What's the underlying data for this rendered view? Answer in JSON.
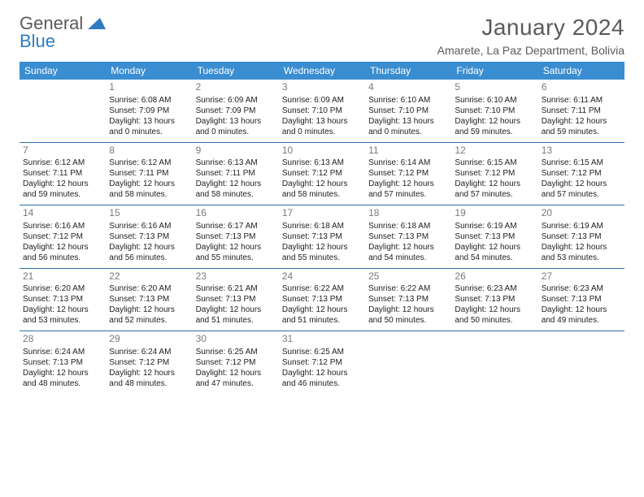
{
  "brand": {
    "first": "General",
    "second": "Blue",
    "first_color": "#5a5a5a",
    "second_color": "#2f7bc1"
  },
  "title": {
    "month": "January 2024",
    "location": "Amarete, La Paz Department, Bolivia",
    "color": "#5a5a5a",
    "month_fontsize": 28,
    "location_fontsize": 14
  },
  "header_bg": "#3a8dd0",
  "header_fg": "#ffffff",
  "rule_color": "#2f6fa8",
  "body_fontsize": 10,
  "daynum_color": "#7a7a7a",
  "daynames": [
    "Sunday",
    "Monday",
    "Tuesday",
    "Wednesday",
    "Thursday",
    "Friday",
    "Saturday"
  ],
  "weeks": [
    [
      null,
      {
        "n": "1",
        "sunrise": "Sunrise: 6:08 AM",
        "sunset": "Sunset: 7:09 PM",
        "day1": "Daylight: 13 hours",
        "day2": "and 0 minutes."
      },
      {
        "n": "2",
        "sunrise": "Sunrise: 6:09 AM",
        "sunset": "Sunset: 7:09 PM",
        "day1": "Daylight: 13 hours",
        "day2": "and 0 minutes."
      },
      {
        "n": "3",
        "sunrise": "Sunrise: 6:09 AM",
        "sunset": "Sunset: 7:10 PM",
        "day1": "Daylight: 13 hours",
        "day2": "and 0 minutes."
      },
      {
        "n": "4",
        "sunrise": "Sunrise: 6:10 AM",
        "sunset": "Sunset: 7:10 PM",
        "day1": "Daylight: 13 hours",
        "day2": "and 0 minutes."
      },
      {
        "n": "5",
        "sunrise": "Sunrise: 6:10 AM",
        "sunset": "Sunset: 7:10 PM",
        "day1": "Daylight: 12 hours",
        "day2": "and 59 minutes."
      },
      {
        "n": "6",
        "sunrise": "Sunrise: 6:11 AM",
        "sunset": "Sunset: 7:11 PM",
        "day1": "Daylight: 12 hours",
        "day2": "and 59 minutes."
      }
    ],
    [
      {
        "n": "7",
        "sunrise": "Sunrise: 6:12 AM",
        "sunset": "Sunset: 7:11 PM",
        "day1": "Daylight: 12 hours",
        "day2": "and 59 minutes."
      },
      {
        "n": "8",
        "sunrise": "Sunrise: 6:12 AM",
        "sunset": "Sunset: 7:11 PM",
        "day1": "Daylight: 12 hours",
        "day2": "and 58 minutes."
      },
      {
        "n": "9",
        "sunrise": "Sunrise: 6:13 AM",
        "sunset": "Sunset: 7:11 PM",
        "day1": "Daylight: 12 hours",
        "day2": "and 58 minutes."
      },
      {
        "n": "10",
        "sunrise": "Sunrise: 6:13 AM",
        "sunset": "Sunset: 7:12 PM",
        "day1": "Daylight: 12 hours",
        "day2": "and 58 minutes."
      },
      {
        "n": "11",
        "sunrise": "Sunrise: 6:14 AM",
        "sunset": "Sunset: 7:12 PM",
        "day1": "Daylight: 12 hours",
        "day2": "and 57 minutes."
      },
      {
        "n": "12",
        "sunrise": "Sunrise: 6:15 AM",
        "sunset": "Sunset: 7:12 PM",
        "day1": "Daylight: 12 hours",
        "day2": "and 57 minutes."
      },
      {
        "n": "13",
        "sunrise": "Sunrise: 6:15 AM",
        "sunset": "Sunset: 7:12 PM",
        "day1": "Daylight: 12 hours",
        "day2": "and 57 minutes."
      }
    ],
    [
      {
        "n": "14",
        "sunrise": "Sunrise: 6:16 AM",
        "sunset": "Sunset: 7:12 PM",
        "day1": "Daylight: 12 hours",
        "day2": "and 56 minutes."
      },
      {
        "n": "15",
        "sunrise": "Sunrise: 6:16 AM",
        "sunset": "Sunset: 7:13 PM",
        "day1": "Daylight: 12 hours",
        "day2": "and 56 minutes."
      },
      {
        "n": "16",
        "sunrise": "Sunrise: 6:17 AM",
        "sunset": "Sunset: 7:13 PM",
        "day1": "Daylight: 12 hours",
        "day2": "and 55 minutes."
      },
      {
        "n": "17",
        "sunrise": "Sunrise: 6:18 AM",
        "sunset": "Sunset: 7:13 PM",
        "day1": "Daylight: 12 hours",
        "day2": "and 55 minutes."
      },
      {
        "n": "18",
        "sunrise": "Sunrise: 6:18 AM",
        "sunset": "Sunset: 7:13 PM",
        "day1": "Daylight: 12 hours",
        "day2": "and 54 minutes."
      },
      {
        "n": "19",
        "sunrise": "Sunrise: 6:19 AM",
        "sunset": "Sunset: 7:13 PM",
        "day1": "Daylight: 12 hours",
        "day2": "and 54 minutes."
      },
      {
        "n": "20",
        "sunrise": "Sunrise: 6:19 AM",
        "sunset": "Sunset: 7:13 PM",
        "day1": "Daylight: 12 hours",
        "day2": "and 53 minutes."
      }
    ],
    [
      {
        "n": "21",
        "sunrise": "Sunrise: 6:20 AM",
        "sunset": "Sunset: 7:13 PM",
        "day1": "Daylight: 12 hours",
        "day2": "and 53 minutes."
      },
      {
        "n": "22",
        "sunrise": "Sunrise: 6:20 AM",
        "sunset": "Sunset: 7:13 PM",
        "day1": "Daylight: 12 hours",
        "day2": "and 52 minutes."
      },
      {
        "n": "23",
        "sunrise": "Sunrise: 6:21 AM",
        "sunset": "Sunset: 7:13 PM",
        "day1": "Daylight: 12 hours",
        "day2": "and 51 minutes."
      },
      {
        "n": "24",
        "sunrise": "Sunrise: 6:22 AM",
        "sunset": "Sunset: 7:13 PM",
        "day1": "Daylight: 12 hours",
        "day2": "and 51 minutes."
      },
      {
        "n": "25",
        "sunrise": "Sunrise: 6:22 AM",
        "sunset": "Sunset: 7:13 PM",
        "day1": "Daylight: 12 hours",
        "day2": "and 50 minutes."
      },
      {
        "n": "26",
        "sunrise": "Sunrise: 6:23 AM",
        "sunset": "Sunset: 7:13 PM",
        "day1": "Daylight: 12 hours",
        "day2": "and 50 minutes."
      },
      {
        "n": "27",
        "sunrise": "Sunrise: 6:23 AM",
        "sunset": "Sunset: 7:13 PM",
        "day1": "Daylight: 12 hours",
        "day2": "and 49 minutes."
      }
    ],
    [
      {
        "n": "28",
        "sunrise": "Sunrise: 6:24 AM",
        "sunset": "Sunset: 7:13 PM",
        "day1": "Daylight: 12 hours",
        "day2": "and 48 minutes."
      },
      {
        "n": "29",
        "sunrise": "Sunrise: 6:24 AM",
        "sunset": "Sunset: 7:12 PM",
        "day1": "Daylight: 12 hours",
        "day2": "and 48 minutes."
      },
      {
        "n": "30",
        "sunrise": "Sunrise: 6:25 AM",
        "sunset": "Sunset: 7:12 PM",
        "day1": "Daylight: 12 hours",
        "day2": "and 47 minutes."
      },
      {
        "n": "31",
        "sunrise": "Sunrise: 6:25 AM",
        "sunset": "Sunset: 7:12 PM",
        "day1": "Daylight: 12 hours",
        "day2": "and 46 minutes."
      },
      null,
      null,
      null
    ]
  ]
}
